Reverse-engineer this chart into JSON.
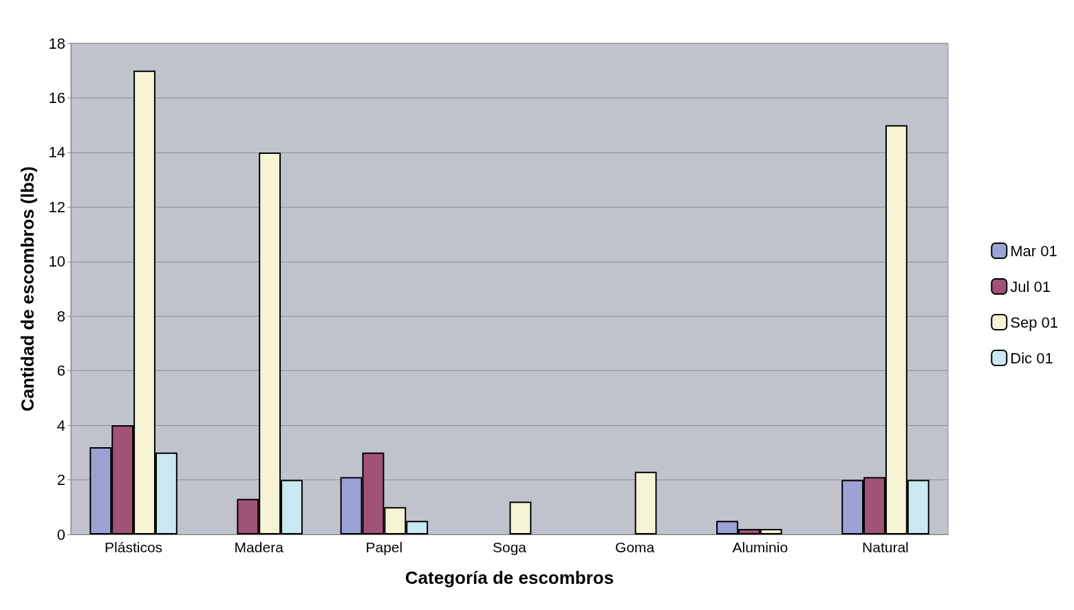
{
  "chart_data": {
    "type": "bar",
    "xlabel": "Categoría de escombros",
    "ylabel": "Cantidad de escombros (lbs)",
    "categories": [
      "Plásticos",
      "Madera",
      "Papel",
      "Soga",
      "Goma",
      "Aluminio",
      "Natural"
    ],
    "series": [
      {
        "name": "Mar 01",
        "color": "#9aa3d4",
        "values": [
          3.2,
          null,
          2.1,
          null,
          null,
          0.5,
          2
        ]
      },
      {
        "name": "Jul 01",
        "color": "#a05277",
        "values": [
          4,
          1.3,
          3,
          null,
          null,
          0.2,
          2.1
        ]
      },
      {
        "name": "Sep 01",
        "color": "#f5f5d6",
        "values": [
          17,
          14,
          1,
          1.2,
          2.3,
          0.2,
          15
        ]
      },
      {
        "name": "Dic 01",
        "color": "#c9e8f2",
        "values": [
          3,
          2,
          0.5,
          null,
          null,
          null,
          2
        ]
      }
    ],
    "ylim": [
      0,
      18
    ],
    "yticks": [
      0,
      2,
      4,
      6,
      8,
      10,
      12,
      14,
      16,
      18
    ],
    "grid": "y",
    "legend": "right"
  }
}
